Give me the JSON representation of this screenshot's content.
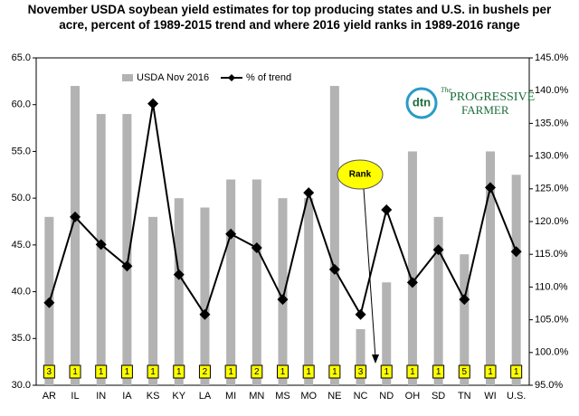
{
  "chart_data": {
    "type": "bar",
    "title": "November USDA soybean yield estimates for top producing states and U.S. in bushels per acre, percent of 1989-2015 trend and where 2016 yield ranks in 1989-2016 range",
    "categories": [
      "AR",
      "IL",
      "IN",
      "IA",
      "KS",
      "KY",
      "LA",
      "MI",
      "MN",
      "MS",
      "MO",
      "NE",
      "NC",
      "ND",
      "OH",
      "SD",
      "TN",
      "WI",
      "U.S."
    ],
    "series": [
      {
        "name": "USDA Nov 2016",
        "type": "bar",
        "color": "#b3b3b3",
        "values": [
          48,
          62,
          59,
          59,
          48,
          50,
          49,
          52,
          52,
          50,
          50,
          62,
          36,
          41,
          55,
          48,
          44,
          55,
          52.5
        ]
      },
      {
        "name": "% of trend",
        "type": "line",
        "axis": "y2",
        "color": "#000000",
        "values": [
          107.6,
          120.7,
          116.5,
          113.2,
          138,
          111.9,
          105.8,
          118.1,
          116,
          108.1,
          124.4,
          112.7,
          105.8,
          121.8,
          110.7,
          115.7,
          108.1,
          125.2,
          115.4
        ]
      }
    ],
    "ranks": [
      3,
      1,
      1,
      1,
      1,
      1,
      2,
      1,
      2,
      1,
      1,
      1,
      3,
      1,
      1,
      1,
      5,
      1,
      1
    ],
    "rank_annotation": "Rank",
    "ylim": [
      30,
      65
    ],
    "yticks": [
      {
        "value": 30,
        "label": "30.0"
      },
      {
        "value": 35,
        "label": "35.0"
      },
      {
        "value": 40,
        "label": "40.0"
      },
      {
        "value": 45,
        "label": "45.0"
      },
      {
        "value": 50,
        "label": "50.0"
      },
      {
        "value": 55,
        "label": "55.0"
      },
      {
        "value": 60,
        "label": "60.0"
      },
      {
        "value": 65,
        "label": "65.0"
      }
    ],
    "y2lim": [
      95,
      145
    ],
    "y2ticks": [
      {
        "value": 95,
        "label": "95.0%"
      },
      {
        "value": 100,
        "label": "100.0%"
      },
      {
        "value": 105,
        "label": "105.0%"
      },
      {
        "value": 110,
        "label": "110.0%"
      },
      {
        "value": 115,
        "label": "115.0%"
      },
      {
        "value": 120,
        "label": "120.0%"
      },
      {
        "value": 125,
        "label": "125.0%"
      },
      {
        "value": 130,
        "label": "130.0%"
      },
      {
        "value": 135,
        "label": "135.0%"
      },
      {
        "value": 140,
        "label": "140.0%"
      },
      {
        "value": 145,
        "label": "145.0%"
      }
    ],
    "logo": {
      "mark": "dtn",
      "the": "The",
      "name1": "PROGRESSIVE",
      "name2": "FARMER"
    }
  }
}
